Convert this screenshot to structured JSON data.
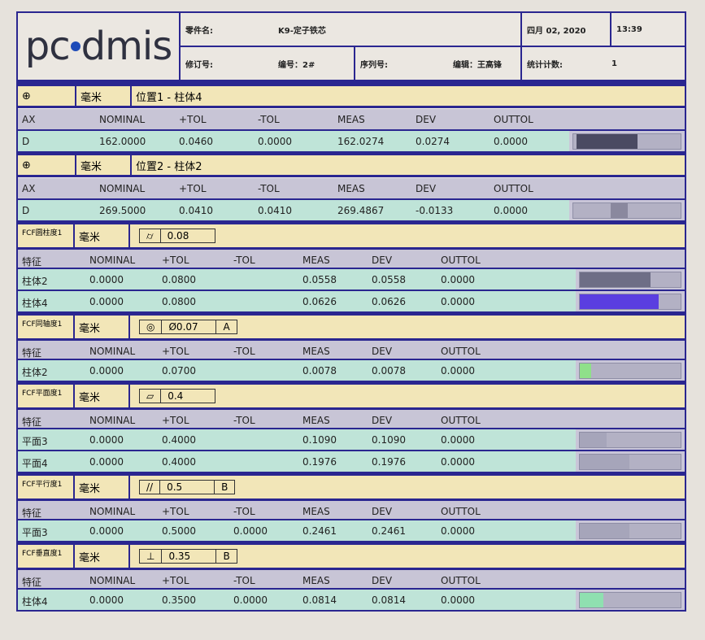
{
  "header": {
    "logo": "pc dmis",
    "part_name_label": "零件名:",
    "part_name": "K9-定子铁芯",
    "date": "四月 02, 2020",
    "time": "13:39",
    "rev_label": "修订号:",
    "number": "编号：2#",
    "serial_label": "序列号:",
    "editor": "编辑：王高锋",
    "stat_count_label": "统计计数:",
    "stat_count": "1"
  },
  "colors": {
    "border": "#2a2690",
    "header_band": "#f2e6b8",
    "column_band": "#c8c5d6",
    "data_band": "#bfe4d8",
    "bar_blue": "#5a3ee0",
    "bar_green": "#8fe08a",
    "bar_dark": "#4a4a62"
  },
  "positional": [
    {
      "icon": "位置-icon",
      "icon_text": "⊕",
      "unit": "毫米",
      "name": "位置1 - 柱体4",
      "columns": [
        "AX",
        "NOMINAL",
        "+TOL",
        "-TOL",
        "MEAS",
        "DEV",
        "OUTTOL"
      ],
      "row": [
        "D",
        "162.0000",
        "0.0460",
        "0.0000",
        "162.0274",
        "0.0274",
        "0.0000"
      ],
      "bar": {
        "start": 0.03,
        "end": 0.6,
        "color": "#4a4a62"
      }
    },
    {
      "icon": "位置-icon",
      "icon_text": "⊕",
      "unit": "毫米",
      "name": "位置2 - 柱体2",
      "columns": [
        "AX",
        "NOMINAL",
        "+TOL",
        "-TOL",
        "MEAS",
        "DEV",
        "OUTTOL"
      ],
      "row": [
        "D",
        "269.5000",
        "0.0410",
        "0.0410",
        "269.4867",
        "-0.0133",
        "0.0000"
      ],
      "bar": {
        "start": 0.35,
        "end": 0.51,
        "color": "#8a889e"
      }
    }
  ],
  "fcf": [
    {
      "label": "FCF圆柱度1",
      "unit": "毫米",
      "symbol": "⌭",
      "cells": [
        "0.08"
      ],
      "columns": [
        "特征",
        "NOMINAL",
        "+TOL",
        "-TOL",
        "MEAS",
        "DEV",
        "OUTTOL"
      ],
      "rows": [
        [
          "柱体2",
          "0.0000",
          "0.0800",
          "",
          "0.0558",
          "0.0558",
          "0.0000"
        ],
        [
          "柱体4",
          "0.0000",
          "0.0800",
          "",
          "0.0626",
          "0.0626",
          "0.0000"
        ]
      ],
      "bars": [
        {
          "fill": 0.7,
          "color": "#6e6e86"
        },
        {
          "fill": 0.78,
          "color": "#5a3ee0"
        }
      ]
    },
    {
      "label": "FCF同轴度1",
      "unit": "毫米",
      "symbol": "◎",
      "cells": [
        "Ø0.07",
        "A"
      ],
      "columns": [
        "特征",
        "NOMINAL",
        "+TOL",
        "-TOL",
        "MEAS",
        "DEV",
        "OUTTOL"
      ],
      "rows": [
        [
          "柱体2",
          "0.0000",
          "0.0700",
          "",
          "0.0078",
          "0.0078",
          "0.0000"
        ]
      ],
      "bars": [
        {
          "fill": 0.11,
          "color": "#8fe08a"
        }
      ]
    },
    {
      "label": "FCF平面度1",
      "unit": "毫米",
      "symbol": "▱",
      "cells": [
        "0.4"
      ],
      "columns": [
        "特征",
        "NOMINAL",
        "+TOL",
        "-TOL",
        "MEAS",
        "DEV",
        "OUTTOL"
      ],
      "rows": [
        [
          "平面3",
          "0.0000",
          "0.4000",
          "",
          "0.1090",
          "0.1090",
          "0.0000"
        ],
        [
          "平面4",
          "0.0000",
          "0.4000",
          "",
          "0.1976",
          "0.1976",
          "0.0000"
        ]
      ],
      "bars": [
        {
          "fill": 0.27,
          "color": "#a6a5ba"
        },
        {
          "fill": 0.49,
          "color": "#a6a5ba"
        }
      ]
    },
    {
      "label": "FCF平行度1",
      "unit": "毫米",
      "symbol": "//",
      "cells": [
        "0.5",
        "B"
      ],
      "columns": [
        "特征",
        "NOMINAL",
        "+TOL",
        "-TOL",
        "MEAS",
        "DEV",
        "OUTTOL"
      ],
      "rows": [
        [
          "平面3",
          "0.0000",
          "0.5000",
          "0.0000",
          "0.2461",
          "0.2461",
          "0.0000"
        ]
      ],
      "bars": [
        {
          "fill": 0.49,
          "color": "#a6a5ba"
        }
      ]
    },
    {
      "label": "FCF垂直度1",
      "unit": "毫米",
      "symbol": "⊥",
      "cells": [
        "0.35",
        "B"
      ],
      "columns": [
        "特征",
        "NOMINAL",
        "+TOL",
        "-TOL",
        "MEAS",
        "DEV",
        "OUTTOL"
      ],
      "rows": [
        [
          "柱体4",
          "0.0000",
          "0.3500",
          "0.0000",
          "0.0814",
          "0.0814",
          "0.0000"
        ]
      ],
      "bars": [
        {
          "fill": 0.23,
          "color": "#8fe0b0"
        }
      ]
    }
  ]
}
